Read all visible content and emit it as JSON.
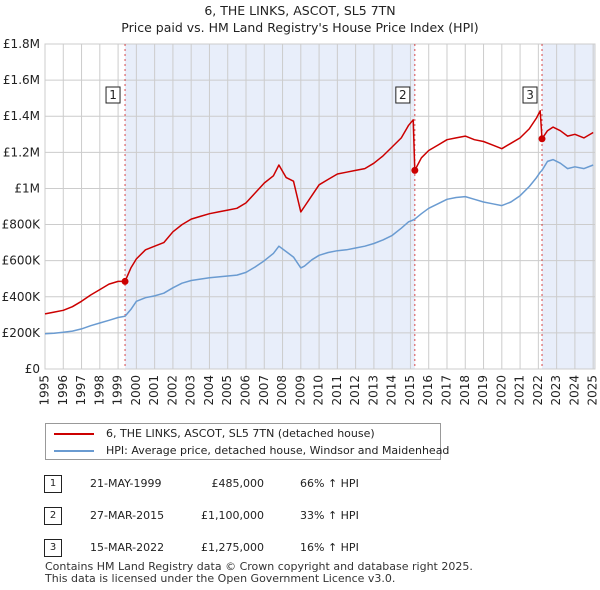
{
  "title": {
    "line1": "6, THE LINKS, ASCOT, SL5 7TN",
    "line2": "Price paid vs. HM Land Registry's House Price Index (HPI)"
  },
  "chart_data": {
    "type": "line",
    "title": "6, THE LINKS, ASCOT, SL5 7TN — Price paid vs. HM Land Registry's House Price Index (HPI)",
    "xlabel": "",
    "ylabel": "",
    "xlim": [
      1995,
      2025.1
    ],
    "ylim": [
      0,
      1800000
    ],
    "x_ticks": [
      1995,
      1996,
      1997,
      1998,
      1999,
      2000,
      2001,
      2002,
      2003,
      2004,
      2005,
      2006,
      2007,
      2008,
      2009,
      2010,
      2011,
      2012,
      2013,
      2014,
      2015,
      2016,
      2017,
      2018,
      2019,
      2020,
      2021,
      2022,
      2023,
      2024,
      2025
    ],
    "y_ticks": [
      0,
      200000,
      400000,
      600000,
      800000,
      1000000,
      1200000,
      1400000,
      1600000,
      1800000
    ],
    "y_tick_labels": [
      "£0",
      "£200K",
      "£400K",
      "£600K",
      "£800K",
      "£1M",
      "£1.2M",
      "£1.4M",
      "£1.6M",
      "£1.8M"
    ],
    "grid": true,
    "shaded_ownership_periods": [
      [
        1999.38,
        2015.24
      ],
      [
        2022.2,
        2025.1
      ]
    ],
    "series": [
      {
        "name": "6, THE LINKS, ASCOT, SL5 7TN (detached house)",
        "color": "#cc0000",
        "x": [
          1995.0,
          1995.5,
          1996.0,
          1996.5,
          1997.0,
          1997.5,
          1998.0,
          1998.5,
          1999.0,
          1999.38,
          1999.7,
          2000.0,
          2000.5,
          2001.0,
          2001.5,
          2002.0,
          2002.5,
          2003.0,
          2003.5,
          2004.0,
          2004.5,
          2005.0,
          2005.5,
          2006.0,
          2006.5,
          2007.0,
          2007.5,
          2007.8,
          2008.2,
          2008.6,
          2009.0,
          2009.2,
          2009.6,
          2010.0,
          2010.5,
          2011.0,
          2011.5,
          2012.0,
          2012.5,
          2013.0,
          2013.5,
          2014.0,
          2014.5,
          2014.9,
          2015.15,
          2015.24,
          2015.6,
          2016.0,
          2016.5,
          2017.0,
          2017.5,
          2018.0,
          2018.5,
          2019.0,
          2019.5,
          2020.0,
          2020.5,
          2021.0,
          2021.5,
          2021.9,
          2022.1,
          2022.2,
          2022.5,
          2022.8,
          2023.2,
          2023.6,
          2024.0,
          2024.5,
          2025.0
        ],
        "values": [
          305000,
          315000,
          325000,
          345000,
          375000,
          410000,
          440000,
          470000,
          485000,
          485000,
          560000,
          610000,
          660000,
          680000,
          700000,
          760000,
          800000,
          830000,
          845000,
          860000,
          870000,
          880000,
          890000,
          920000,
          975000,
          1030000,
          1070000,
          1130000,
          1060000,
          1040000,
          870000,
          900000,
          960000,
          1020000,
          1050000,
          1080000,
          1090000,
          1100000,
          1110000,
          1140000,
          1180000,
          1230000,
          1280000,
          1350000,
          1380000,
          1100000,
          1170000,
          1210000,
          1240000,
          1270000,
          1280000,
          1290000,
          1270000,
          1260000,
          1240000,
          1220000,
          1250000,
          1280000,
          1330000,
          1390000,
          1430000,
          1275000,
          1320000,
          1340000,
          1320000,
          1290000,
          1300000,
          1280000,
          1310000
        ]
      },
      {
        "name": "HPI: Average price, detached house, Windsor and Maidenhead",
        "color": "#6a9bd1",
        "x": [
          1995.0,
          1995.5,
          1996.0,
          1996.5,
          1997.0,
          1997.5,
          1998.0,
          1998.5,
          1999.0,
          1999.38,
          1999.7,
          2000.0,
          2000.5,
          2001.0,
          2001.5,
          2002.0,
          2002.5,
          2003.0,
          2003.5,
          2004.0,
          2004.5,
          2005.0,
          2005.5,
          2006.0,
          2006.5,
          2007.0,
          2007.5,
          2007.8,
          2008.2,
          2008.6,
          2009.0,
          2009.2,
          2009.6,
          2010.0,
          2010.5,
          2011.0,
          2011.5,
          2012.0,
          2012.5,
          2013.0,
          2013.5,
          2014.0,
          2014.5,
          2014.9,
          2015.15,
          2015.24,
          2015.6,
          2016.0,
          2016.5,
          2017.0,
          2017.5,
          2018.0,
          2018.5,
          2019.0,
          2019.5,
          2020.0,
          2020.5,
          2021.0,
          2021.5,
          2021.9,
          2022.1,
          2022.2,
          2022.5,
          2022.8,
          2023.2,
          2023.6,
          2024.0,
          2024.5,
          2025.0
        ],
        "values": [
          195000,
          198000,
          203000,
          210000,
          222000,
          240000,
          255000,
          270000,
          285000,
          292000,
          330000,
          375000,
          395000,
          405000,
          420000,
          450000,
          475000,
          490000,
          498000,
          505000,
          510000,
          515000,
          520000,
          535000,
          565000,
          600000,
          640000,
          680000,
          650000,
          620000,
          560000,
          570000,
          605000,
          630000,
          645000,
          655000,
          660000,
          670000,
          680000,
          695000,
          715000,
          740000,
          780000,
          815000,
          825000,
          830000,
          860000,
          890000,
          915000,
          940000,
          950000,
          955000,
          940000,
          925000,
          915000,
          905000,
          925000,
          960000,
          1010000,
          1060000,
          1090000,
          1100000,
          1150000,
          1160000,
          1140000,
          1110000,
          1120000,
          1110000,
          1130000
        ]
      }
    ],
    "sale_markers": [
      {
        "label": "1",
        "x": 1999.38,
        "value": 485000
      },
      {
        "label": "2",
        "x": 2015.24,
        "value": 1100000
      },
      {
        "label": "3",
        "x": 2022.2,
        "value": 1275000
      }
    ]
  },
  "legend": {
    "items": [
      {
        "label": "6, THE LINKS, ASCOT, SL5 7TN (detached house)",
        "color": "#cc0000"
      },
      {
        "label": "HPI: Average price, detached house, Windsor and Maidenhead",
        "color": "#6a9bd1"
      }
    ]
  },
  "sales_table": {
    "rows": [
      {
        "num": "1",
        "date": "21-MAY-1999",
        "price": "£485,000",
        "hpi": "66% ↑ HPI"
      },
      {
        "num": "2",
        "date": "27-MAR-2015",
        "price": "£1,100,000",
        "hpi": "33% ↑ HPI"
      },
      {
        "num": "3",
        "date": "15-MAR-2022",
        "price": "£1,275,000",
        "hpi": "16% ↑ HPI"
      }
    ]
  },
  "footer": {
    "line1": "Contains HM Land Registry data © Crown copyright and database right 2025.",
    "line2": "This data is licensed under the Open Government Licence v3.0."
  }
}
